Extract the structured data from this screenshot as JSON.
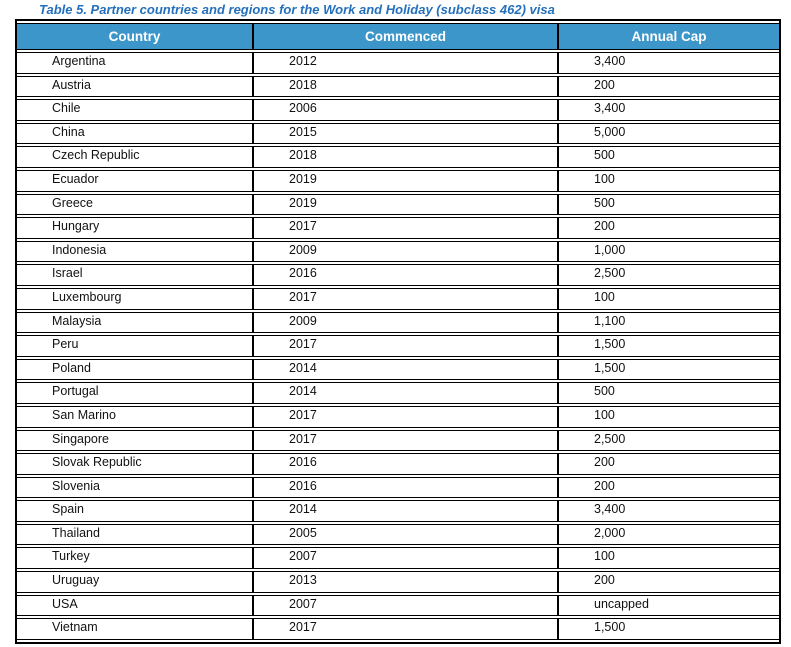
{
  "title": "Table 5. Partner countries and regions for the Work and Holiday (subclass 462) visa",
  "table": {
    "columns": [
      "Country",
      "Commenced",
      "Annual Cap"
    ],
    "rows": [
      [
        "Argentina",
        "2012",
        "3,400"
      ],
      [
        "Austria",
        "2018",
        "200"
      ],
      [
        "Chile",
        "2006",
        "3,400"
      ],
      [
        "China",
        "2015",
        "5,000"
      ],
      [
        "Czech Republic",
        "2018",
        "500"
      ],
      [
        "Ecuador",
        "2019",
        "100"
      ],
      [
        "Greece",
        "2019",
        "500"
      ],
      [
        "Hungary",
        "2017",
        "200"
      ],
      [
        "Indonesia",
        "2009",
        "1,000"
      ],
      [
        "Israel",
        "2016",
        "2,500"
      ],
      [
        "Luxembourg",
        "2017",
        "100"
      ],
      [
        "Malaysia",
        "2009",
        "1,100"
      ],
      [
        "Peru",
        "2017",
        "1,500"
      ],
      [
        "Poland",
        "2014",
        "1,500"
      ],
      [
        "Portugal",
        "2014",
        "500"
      ],
      [
        "San Marino",
        "2017",
        "100"
      ],
      [
        "Singapore",
        "2017",
        "2,500"
      ],
      [
        "Slovak Republic",
        "2016",
        "200"
      ],
      [
        "Slovenia",
        "2016",
        "200"
      ],
      [
        "Spain",
        "2014",
        "3,400"
      ],
      [
        "Thailand",
        "2005",
        "2,000"
      ],
      [
        "Turkey",
        "2007",
        "100"
      ],
      [
        "Uruguay",
        "2013",
        "200"
      ],
      [
        "USA",
        "2007",
        "uncapped"
      ],
      [
        "Vietnam",
        "2017",
        "1,500"
      ]
    ]
  },
  "colors": {
    "header_bg": "#3C96C9",
    "title_text": "#2470BD",
    "border": "#000000"
  }
}
